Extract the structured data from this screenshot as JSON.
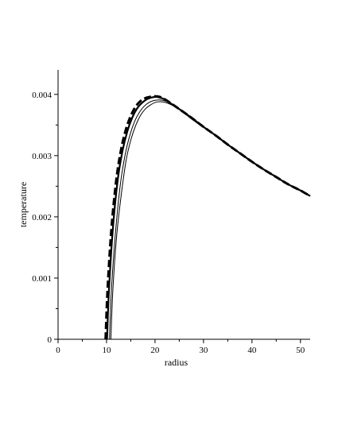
{
  "chart_data": {
    "type": "line",
    "title": "",
    "xlabel": "radius",
    "ylabel": "temperature",
    "xlim": [
      0,
      52
    ],
    "ylim": [
      0,
      0.0044
    ],
    "x_ticks": [
      0,
      10,
      20,
      30,
      40,
      50
    ],
    "x_tick_labels": [
      "0",
      "10",
      "20",
      "30",
      "40",
      "50"
    ],
    "y_ticks": [
      0,
      0.001,
      0.002,
      0.003,
      0.004
    ],
    "y_tick_labels": [
      "0",
      "0.001",
      "0.002",
      "0.003",
      "0.004"
    ],
    "grid": false,
    "legend": "none",
    "series": [
      {
        "style": "dashed-thick",
        "x": [
          9.8,
          10.2,
          11,
          12,
          13,
          14,
          15,
          16,
          17,
          18,
          19,
          20,
          21,
          22,
          23,
          25,
          27.5,
          30,
          32.5,
          35,
          37.5,
          40,
          42.5,
          45,
          47.5,
          50,
          52
        ],
        "y": [
          0,
          0.0008,
          0.0018,
          0.0026,
          0.0031,
          0.00343,
          0.00365,
          0.0038,
          0.00389,
          0.00394,
          0.00396,
          0.00397,
          0.00396,
          0.00392,
          0.00387,
          0.00376,
          0.00362,
          0.00347,
          0.00333,
          0.00318,
          0.00304,
          0.0029,
          0.00277,
          0.00265,
          0.00253,
          0.00243,
          0.00234
        ]
      },
      {
        "style": "solid-thick",
        "x": [
          10.1,
          10.5,
          11.3,
          12.3,
          13.3,
          14.3,
          15.3,
          16.3,
          17.3,
          18.3,
          19.3,
          20.3,
          21.3,
          22.3,
          23.3,
          25,
          27.5,
          30,
          32.5,
          35,
          37.5,
          40,
          42.5,
          45,
          47.5,
          50,
          52
        ],
        "y": [
          0,
          0.0008,
          0.0018,
          0.0026,
          0.00308,
          0.0034,
          0.00362,
          0.00377,
          0.00386,
          0.00392,
          0.00395,
          0.00396,
          0.00394,
          0.00391,
          0.00385,
          0.00376,
          0.00362,
          0.00347,
          0.00333,
          0.00318,
          0.00304,
          0.0029,
          0.00277,
          0.00265,
          0.00253,
          0.00243,
          0.00234
        ]
      },
      {
        "style": "solid-thin",
        "x": [
          10.6,
          11,
          11.8,
          12.8,
          13.8,
          14.8,
          15.8,
          16.8,
          17.8,
          18.8,
          19.8,
          20.8,
          21.8,
          22.8,
          24,
          25.5,
          27.5,
          30,
          32.5,
          35,
          37.5,
          40,
          42.5,
          45,
          47.5,
          50,
          52
        ],
        "y": [
          0,
          0.0008,
          0.0017,
          0.0025,
          0.003,
          0.00333,
          0.00356,
          0.00371,
          0.00381,
          0.00387,
          0.0039,
          0.00391,
          0.0039,
          0.00387,
          0.00381,
          0.00373,
          0.00361,
          0.00347,
          0.00333,
          0.00318,
          0.00304,
          0.0029,
          0.00277,
          0.00265,
          0.00253,
          0.00243,
          0.00234
        ]
      },
      {
        "style": "solid-thin",
        "x": [
          10.9,
          11.3,
          12.1,
          13.1,
          14.1,
          15.1,
          16.1,
          17.1,
          18.1,
          19.1,
          20.1,
          21.1,
          22.1,
          23.1,
          24.3,
          25.8,
          27.5,
          30,
          32.5,
          35,
          37.5,
          40,
          42.5,
          45,
          47.5,
          50,
          52
        ],
        "y": [
          0,
          0.0008,
          0.0017,
          0.0024,
          0.00295,
          0.00328,
          0.00351,
          0.00367,
          0.00377,
          0.00383,
          0.00387,
          0.00388,
          0.00387,
          0.00384,
          0.00379,
          0.00371,
          0.0036,
          0.00346,
          0.00333,
          0.00318,
          0.00304,
          0.0029,
          0.00277,
          0.00265,
          0.00253,
          0.00243,
          0.00234
        ]
      }
    ]
  }
}
